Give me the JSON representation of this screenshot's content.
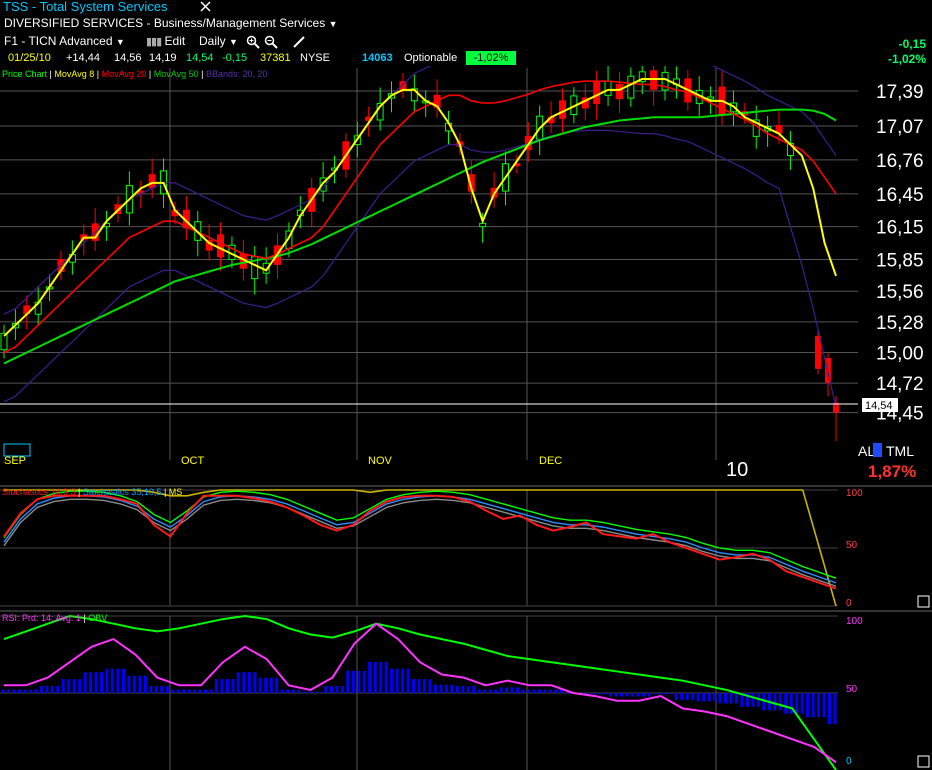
{
  "header": {
    "title": "TSS - Total System Services",
    "sector": "DIVERSIFIED SERVICES - Business/Management Services",
    "layout": "F1 - TICN Advanced",
    "edit_label": "Edit",
    "period_label": "Daily",
    "quote": {
      "date": "01/25/10",
      "change_open": "+14,44",
      "high": "14,56",
      "low": "14,19",
      "close": "14,54",
      "change": "-0,15",
      "volume": "37381",
      "exchange": "NYSE",
      "symbol_id": "14063",
      "optionable": "Optionable",
      "pct_badge": "-1,02%"
    },
    "right_change": "-0,15",
    "right_pct": "-1,02%"
  },
  "colors": {
    "up": "#00ff00",
    "down": "#ff0000",
    "ma8": "#ffff00",
    "ma20": "#ff0000",
    "ma50": "#00dd00",
    "bbands": "#3d1d8f",
    "stoch_fast": "#ff1a1a",
    "stoch_slow": "#8a8a8a",
    "stoch_ms": "#c8b400",
    "rsi": "#ff33ff",
    "obv": "#00ff00",
    "obv_hist": "#0000ff"
  },
  "price_panel": {
    "legend": [
      "Price Chart",
      "MovAvg 8",
      "MovAvg 20",
      "MovAvg 50",
      "BBands: 20, 20"
    ],
    "legend_colors": [
      "#00ff00",
      "#ffff00",
      "#ff0000",
      "#00cc00",
      "#5533aa"
    ],
    "last_price_tag": "14,54",
    "month_labels": [
      "SEP",
      "OCT",
      "NOV",
      "DEC",
      "10"
    ],
    "al_label": "AL",
    "tml_label": "TML",
    "pct_bottom": "1,87%"
  },
  "stoch_panel": {
    "legend": [
      "Stochastics 14,3,3",
      "Stochastics 35,10,5",
      "MS"
    ],
    "y_ticks": [
      "100",
      "50",
      "0"
    ]
  },
  "rsi_panel": {
    "legend": [
      "RSI: Prd: 14; Avg: 1",
      "OBV"
    ],
    "y_ticks": [
      "100",
      "50",
      "0"
    ]
  },
  "chart_data": {
    "type": "line",
    "title": "TSS - Total System Services",
    "yticks": [
      "17,39",
      "17,07",
      "16,76",
      "16,45",
      "16,15",
      "15,85",
      "15,56",
      "15,28",
      "15,00",
      "14,72",
      "14,45"
    ],
    "ylim": [
      14.2,
      17.6
    ],
    "xlabel": "",
    "ylabel": "",
    "grid": true,
    "series": [
      {
        "name": "MovAvg 8",
        "values": [
          15.15,
          15.25,
          15.35,
          15.45,
          15.6,
          15.75,
          15.9,
          16.05,
          16.05,
          16.2,
          16.3,
          16.4,
          16.5,
          16.55,
          16.55,
          16.3,
          16.2,
          16.1,
          16.0,
          15.95,
          15.9,
          15.85,
          15.8,
          15.75,
          15.9,
          16.05,
          16.25,
          16.4,
          16.55,
          16.65,
          16.8,
          16.95,
          17.1,
          17.25,
          17.35,
          17.4,
          17.4,
          17.3,
          17.25,
          17.1,
          16.9,
          16.5,
          16.2,
          16.45,
          16.6,
          16.75,
          16.9,
          17.05,
          17.15,
          17.2,
          17.25,
          17.3,
          17.35,
          17.4,
          17.4,
          17.45,
          17.5,
          17.5,
          17.5,
          17.45,
          17.4,
          17.35,
          17.3,
          17.3,
          17.25,
          17.15,
          17.1,
          17.05,
          17.0,
          16.9,
          16.8,
          16.5,
          16.0,
          15.7
        ]
      },
      {
        "name": "MovAvg 20",
        "values": [
          15.0,
          15.05,
          15.15,
          15.25,
          15.35,
          15.45,
          15.55,
          15.65,
          15.75,
          15.85,
          15.95,
          16.05,
          16.1,
          16.15,
          16.2,
          16.2,
          16.15,
          16.1,
          16.05,
          16.0,
          15.95,
          15.9,
          15.88,
          15.86,
          15.9,
          15.95,
          16.0,
          16.05,
          16.15,
          16.3,
          16.45,
          16.6,
          16.75,
          16.9,
          17.0,
          17.1,
          17.2,
          17.25,
          17.3,
          17.35,
          17.35,
          17.3,
          17.28,
          17.28,
          17.3,
          17.33,
          17.36,
          17.4,
          17.43,
          17.45,
          17.47,
          17.48,
          17.48,
          17.48,
          17.47,
          17.46,
          17.45,
          17.45,
          17.43,
          17.4,
          17.38,
          17.33,
          17.28,
          17.23,
          17.18,
          17.13,
          17.07,
          17.0,
          16.95,
          16.9,
          16.85,
          16.75,
          16.6,
          16.45
        ]
      },
      {
        "name": "MovAvg 50",
        "values": [
          14.9,
          14.95,
          15.0,
          15.05,
          15.1,
          15.15,
          15.2,
          15.25,
          15.3,
          15.35,
          15.4,
          15.45,
          15.5,
          15.55,
          15.6,
          15.65,
          15.68,
          15.71,
          15.74,
          15.77,
          15.8,
          15.82,
          15.84,
          15.86,
          15.88,
          15.91,
          15.95,
          15.99,
          16.04,
          16.09,
          16.14,
          16.19,
          16.24,
          16.29,
          16.34,
          16.39,
          16.44,
          16.49,
          16.54,
          16.59,
          16.64,
          16.69,
          16.74,
          16.78,
          16.82,
          16.86,
          16.9,
          16.94,
          16.97,
          17.0,
          17.03,
          17.06,
          17.08,
          17.1,
          17.12,
          17.13,
          17.14,
          17.15,
          17.15,
          17.15,
          17.15,
          17.15,
          17.16,
          17.17,
          17.18,
          17.19,
          17.2,
          17.21,
          17.22,
          17.22,
          17.22,
          17.21,
          17.18,
          17.12
        ]
      }
    ],
    "stochastics": {
      "fast": [
        60,
        80,
        92,
        95,
        95,
        95,
        95,
        92,
        88,
        70,
        60,
        80,
        95,
        95,
        95,
        93,
        90,
        85,
        78,
        70,
        65,
        70,
        82,
        90,
        94,
        95,
        95,
        94,
        90,
        82,
        75,
        78,
        70,
        65,
        68,
        72,
        62,
        60,
        58,
        62,
        55,
        50,
        45,
        40,
        42,
        45,
        40,
        30,
        25,
        20,
        15
      ],
      "slow": [
        55,
        75,
        88,
        93,
        95,
        95,
        94,
        91,
        86,
        75,
        68,
        78,
        90,
        94,
        95,
        94,
        92,
        88,
        82,
        76,
        70,
        72,
        80,
        88,
        92,
        94,
        95,
        94,
        92,
        88,
        84,
        80,
        76,
        72,
        70,
        70,
        68,
        65,
        62,
        60,
        58,
        55,
        50,
        46,
        44,
        44,
        42,
        36,
        30,
        25,
        20
      ],
      "ms": [
        100,
        100,
        100,
        100,
        100,
        100,
        100,
        100,
        100,
        98,
        95,
        95,
        98,
        100,
        100,
        100,
        100,
        100,
        100,
        100,
        100,
        100,
        98,
        100,
        100,
        100,
        100,
        100,
        100,
        100,
        100,
        100,
        100,
        100,
        100,
        100,
        100,
        100,
        100,
        100,
        100,
        100,
        100,
        100,
        100,
        100,
        100,
        100,
        100,
        50,
        0
      ]
    },
    "rsi": [
      55,
      55,
      60,
      70,
      80,
      85,
      75,
      60,
      55,
      55,
      70,
      80,
      72,
      55,
      52,
      60,
      82,
      95,
      85,
      70,
      62,
      60,
      55,
      58,
      55,
      55,
      50,
      48,
      45,
      45,
      48,
      40,
      38,
      35,
      30,
      25,
      20,
      15,
      5
    ],
    "obv": [
      85,
      90,
      95,
      100,
      98,
      95,
      92,
      90,
      92,
      95,
      98,
      100,
      98,
      92,
      88,
      86,
      90,
      95,
      92,
      88,
      85,
      82,
      78,
      74,
      72,
      70,
      68,
      66,
      64,
      62,
      60,
      58,
      55,
      52,
      48,
      44,
      40,
      20,
      0
    ]
  }
}
